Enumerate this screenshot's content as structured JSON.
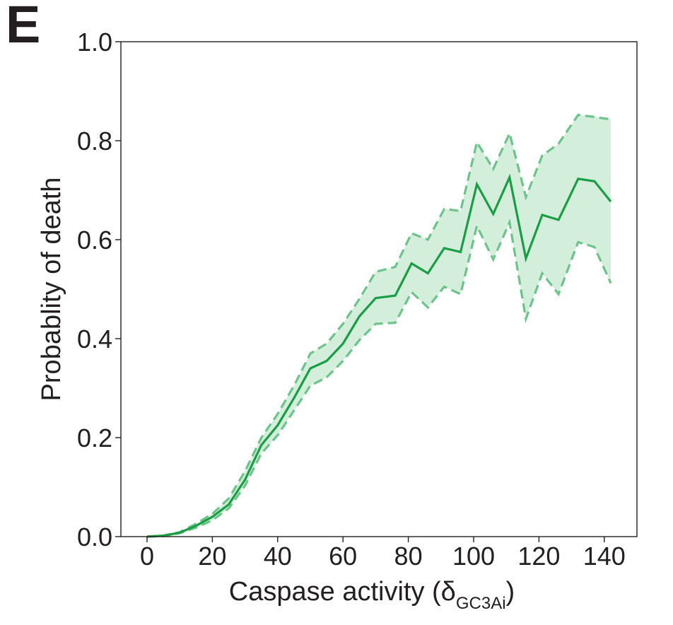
{
  "panel_label": "E",
  "chart_data": {
    "type": "line",
    "xlabel_main": "Caspase activity (δ",
    "xlabel_sub": "GC3Ai",
    "xlabel_close": ")",
    "ylabel": "Probablity of death",
    "xlim": [
      -8,
      150
    ],
    "ylim": [
      0,
      1.0
    ],
    "xticks": [
      0,
      20,
      40,
      60,
      80,
      100,
      120,
      140
    ],
    "yticks": [
      0.0,
      0.2,
      0.4,
      0.6,
      0.8,
      1.0
    ],
    "xtick_labels": [
      "0",
      "20",
      "40",
      "60",
      "80",
      "100",
      "120",
      "140"
    ],
    "ytick_labels": [
      "0.0",
      "0.2",
      "0.4",
      "0.6",
      "0.8",
      "1.0"
    ],
    "grid": false,
    "colors": {
      "line": "#1a9e45",
      "band_fill": "#d3eedb",
      "band_edge": "#6cc48a"
    },
    "x": [
      0,
      5,
      10,
      15,
      20,
      25,
      30,
      35,
      40,
      45,
      50,
      55,
      60,
      65,
      70,
      76,
      81,
      86,
      91,
      96,
      101,
      106,
      111,
      116,
      121,
      126,
      132,
      137,
      142
    ],
    "series": [
      {
        "role": "mean",
        "values": [
          0.0,
          0.002,
          0.008,
          0.022,
          0.04,
          0.065,
          0.115,
          0.185,
          0.225,
          0.28,
          0.34,
          0.355,
          0.39,
          0.445,
          0.482,
          0.487,
          0.552,
          0.532,
          0.583,
          0.575,
          0.712,
          0.652,
          0.726,
          0.562,
          0.65,
          0.64,
          0.723,
          0.718,
          0.677
        ]
      },
      {
        "role": "upper",
        "values": [
          0.0,
          0.002,
          0.009,
          0.026,
          0.046,
          0.077,
          0.132,
          0.2,
          0.248,
          0.305,
          0.37,
          0.39,
          0.43,
          0.48,
          0.535,
          0.545,
          0.613,
          0.6,
          0.662,
          0.658,
          0.797,
          0.743,
          0.815,
          0.686,
          0.77,
          0.794,
          0.852,
          0.848,
          0.843
        ]
      },
      {
        "role": "lower",
        "values": [
          0.0,
          0.001,
          0.007,
          0.018,
          0.033,
          0.057,
          0.103,
          0.168,
          0.205,
          0.255,
          0.305,
          0.322,
          0.355,
          0.397,
          0.43,
          0.432,
          0.494,
          0.463,
          0.505,
          0.49,
          0.628,
          0.56,
          0.635,
          0.44,
          0.532,
          0.49,
          0.595,
          0.585,
          0.512
        ]
      }
    ]
  }
}
